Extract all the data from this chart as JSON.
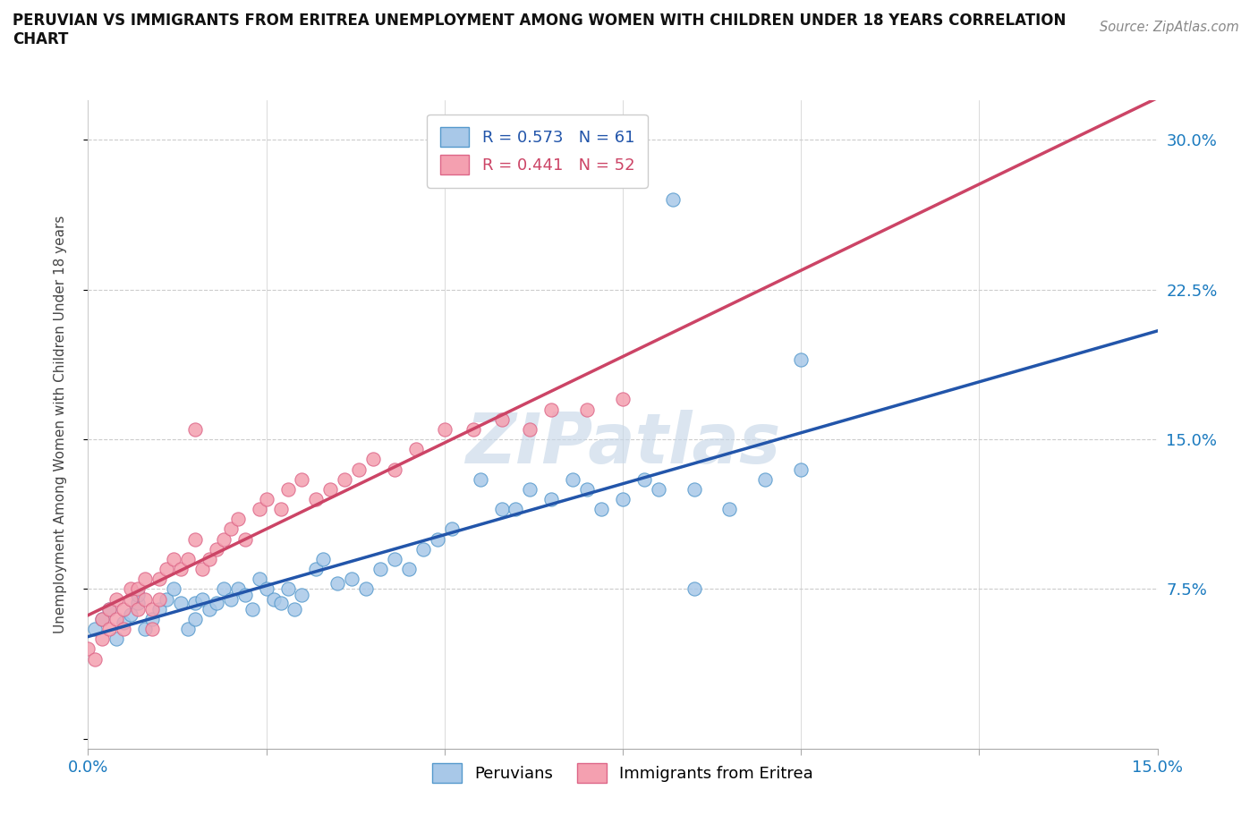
{
  "title": "PERUVIAN VS IMMIGRANTS FROM ERITREA UNEMPLOYMENT AMONG WOMEN WITH CHILDREN UNDER 18 YEARS CORRELATION\nCHART",
  "source": "Source: ZipAtlas.com",
  "ylabel": "Unemployment Among Women with Children Under 18 years",
  "xlim": [
    0.0,
    0.15
  ],
  "ylim": [
    -0.005,
    0.32
  ],
  "r_peruvian": 0.573,
  "n_peruvian": 61,
  "r_eritrea": 0.441,
  "n_eritrea": 52,
  "color_peruvian_fill": "#a8c8e8",
  "color_peruvian_edge": "#5599cc",
  "color_eritrea_fill": "#f4a0b0",
  "color_eritrea_edge": "#dd6688",
  "color_peruvian_line": "#2255aa",
  "color_eritrea_line": "#cc4466",
  "watermark": "ZIPatlas",
  "peru_x": [
    0.001,
    0.002,
    0.003,
    0.004,
    0.005,
    0.006,
    0.007,
    0.007,
    0.008,
    0.009,
    0.01,
    0.011,
    0.012,
    0.013,
    0.014,
    0.015,
    0.015,
    0.016,
    0.017,
    0.018,
    0.019,
    0.02,
    0.021,
    0.022,
    0.023,
    0.024,
    0.025,
    0.026,
    0.027,
    0.028,
    0.029,
    0.03,
    0.032,
    0.033,
    0.035,
    0.037,
    0.039,
    0.041,
    0.043,
    0.045,
    0.047,
    0.049,
    0.051,
    0.055,
    0.058,
    0.06,
    0.062,
    0.065,
    0.068,
    0.07,
    0.072,
    0.075,
    0.078,
    0.08,
    0.082,
    0.085,
    0.09,
    0.095,
    0.1,
    0.1,
    0.085
  ],
  "peru_y": [
    0.055,
    0.06,
    0.065,
    0.05,
    0.058,
    0.062,
    0.068,
    0.072,
    0.055,
    0.06,
    0.065,
    0.07,
    0.075,
    0.068,
    0.055,
    0.06,
    0.068,
    0.07,
    0.065,
    0.068,
    0.075,
    0.07,
    0.075,
    0.072,
    0.065,
    0.08,
    0.075,
    0.07,
    0.068,
    0.075,
    0.065,
    0.072,
    0.085,
    0.09,
    0.078,
    0.08,
    0.075,
    0.085,
    0.09,
    0.085,
    0.095,
    0.1,
    0.105,
    0.13,
    0.115,
    0.115,
    0.125,
    0.12,
    0.13,
    0.125,
    0.115,
    0.12,
    0.13,
    0.125,
    0.27,
    0.125,
    0.115,
    0.13,
    0.135,
    0.19,
    0.075
  ],
  "erit_x": [
    0.0,
    0.001,
    0.002,
    0.002,
    0.003,
    0.003,
    0.004,
    0.004,
    0.005,
    0.005,
    0.006,
    0.006,
    0.007,
    0.007,
    0.008,
    0.008,
    0.009,
    0.009,
    0.01,
    0.01,
    0.011,
    0.012,
    0.013,
    0.014,
    0.015,
    0.016,
    0.017,
    0.018,
    0.019,
    0.02,
    0.021,
    0.022,
    0.024,
    0.025,
    0.027,
    0.028,
    0.03,
    0.032,
    0.034,
    0.036,
    0.038,
    0.04,
    0.043,
    0.046,
    0.05,
    0.054,
    0.058,
    0.062,
    0.065,
    0.07,
    0.075,
    0.015
  ],
  "erit_y": [
    0.045,
    0.04,
    0.05,
    0.06,
    0.055,
    0.065,
    0.06,
    0.07,
    0.055,
    0.065,
    0.07,
    0.075,
    0.065,
    0.075,
    0.07,
    0.08,
    0.055,
    0.065,
    0.07,
    0.08,
    0.085,
    0.09,
    0.085,
    0.09,
    0.1,
    0.085,
    0.09,
    0.095,
    0.1,
    0.105,
    0.11,
    0.1,
    0.115,
    0.12,
    0.115,
    0.125,
    0.13,
    0.12,
    0.125,
    0.13,
    0.135,
    0.14,
    0.135,
    0.145,
    0.155,
    0.155,
    0.16,
    0.155,
    0.165,
    0.165,
    0.17,
    0.155
  ]
}
